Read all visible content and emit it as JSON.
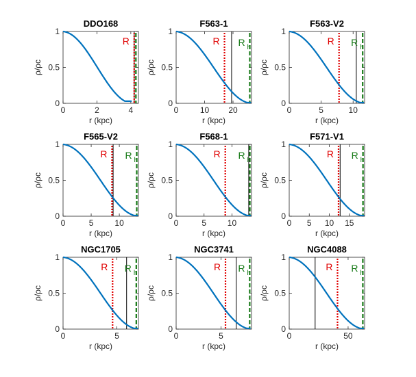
{
  "colors": {
    "profile": "#0072BD",
    "R_marker": "#E00000",
    "Rh_marker": "#177A17",
    "frame": "#262626",
    "other_line": "#000000"
  },
  "chart_data": [
    {
      "type": "line",
      "title": "DDO168",
      "xlabel": "r (kpc)",
      "ylabel": "ρ/ρc",
      "xlim": [
        0,
        4.45
      ],
      "ylim": [
        0,
        1
      ],
      "xticks": [
        0,
        2,
        4
      ],
      "xtick_labels": [
        "0",
        "2",
        "4"
      ],
      "yticks": [
        0,
        0.5,
        1
      ],
      "ytick_labels": [
        "0",
        "0.5",
        "1"
      ],
      "profile": {
        "x_end": 4.05,
        "y_end": 0.03
      },
      "R": 4.2,
      "Rh": 4.3,
      "black_line": 4.2,
      "annotations": {
        "R": "R",
        "Rh": ""
      }
    },
    {
      "type": "line",
      "title": "F563-1",
      "xlabel": "r (kpc)",
      "ylabel": "ρ/ρc",
      "xlim": [
        0,
        26.5
      ],
      "ylim": [
        0,
        1
      ],
      "xticks": [
        0,
        10,
        20
      ],
      "xtick_labels": [
        "0",
        "10",
        "20"
      ],
      "yticks": [
        0,
        0.5,
        1
      ],
      "ytick_labels": [
        "0",
        "0.5",
        "1"
      ],
      "profile": {
        "x_end": 26.3,
        "y_end": 0.01
      },
      "R": 17,
      "Rh": 25.9,
      "black_line": 19.5,
      "annotations": {
        "R": "R",
        "Rh": "R",
        "Rh_sub": "h"
      }
    },
    {
      "type": "line",
      "title": "F563-V2",
      "xlabel": "r (kpc)",
      "ylabel": "ρ/ρc",
      "xlim": [
        0,
        11.8
      ],
      "ylim": [
        0,
        1
      ],
      "xticks": [
        0,
        5,
        10
      ],
      "xtick_labels": [
        "0",
        "5",
        "10"
      ],
      "yticks": [
        0,
        0.5,
        1
      ],
      "ytick_labels": [
        "0",
        "0.5",
        "1"
      ],
      "profile": {
        "x_end": 11.7,
        "y_end": 0.01
      },
      "R": 7.8,
      "Rh": 11.5,
      "black_line": 10.5,
      "annotations": {
        "R": "R",
        "Rh": "R",
        "Rh_sub": "h"
      }
    },
    {
      "type": "line",
      "title": "F565-V2",
      "xlabel": "r (kpc)",
      "ylabel": "ρ/ρc",
      "xlim": [
        0,
        13.4
      ],
      "ylim": [
        0,
        1
      ],
      "xticks": [
        0,
        5,
        10
      ],
      "xtick_labels": [
        "0",
        "5",
        "10"
      ],
      "yticks": [
        0,
        0.5,
        1
      ],
      "ytick_labels": [
        "0",
        "0.5",
        "1"
      ],
      "profile": {
        "x_end": 13.3,
        "y_end": 0.01
      },
      "R": 8.7,
      "Rh": 13.1,
      "black_line": 8.9,
      "annotations": {
        "R": "R",
        "Rh": "R",
        "Rh_sub": "h"
      }
    },
    {
      "type": "line",
      "title": "F568-1",
      "xlabel": "r (kpc)",
      "ylabel": "ρ/ρc",
      "xlim": [
        0,
        13.5
      ],
      "ylim": [
        0,
        1
      ],
      "xticks": [
        0,
        5,
        10
      ],
      "xtick_labels": [
        "0",
        "5",
        "10"
      ],
      "yticks": [
        0,
        0.5,
        1
      ],
      "ytick_labels": [
        "0",
        "0.5",
        "1"
      ],
      "profile": {
        "x_end": 13.4,
        "y_end": 0.01
      },
      "R": 8.8,
      "Rh": 13.2,
      "black_line": 13.0,
      "annotations": {
        "R": "R",
        "Rh": "R",
        "Rh_sub": "h"
      }
    },
    {
      "type": "line",
      "title": "F571-V1",
      "xlabel": "r (kpc)",
      "ylabel": "ρ/ρc",
      "xlim": [
        0,
        18.8
      ],
      "ylim": [
        0,
        1
      ],
      "xticks": [
        0,
        5,
        10,
        15
      ],
      "xtick_labels": [
        "0",
        "5",
        "10",
        "15"
      ],
      "yticks": [
        0,
        0.5,
        1
      ],
      "ytick_labels": [
        "0",
        "0.5",
        "1"
      ],
      "profile": {
        "x_end": 18.7,
        "y_end": 0.01
      },
      "R": 12.3,
      "Rh": 18.4,
      "black_line": 12.7,
      "annotations": {
        "R": "R",
        "Rh": "R",
        "Rh_sub": "h"
      }
    },
    {
      "type": "line",
      "title": "NGC1705",
      "xlabel": "r (kpc)",
      "ylabel": "ρ/ρc",
      "xlim": [
        0,
        7.0
      ],
      "ylim": [
        0,
        1
      ],
      "xticks": [
        0,
        5
      ],
      "xtick_labels": [
        "0",
        "5"
      ],
      "yticks": [
        0,
        0.5,
        1
      ],
      "ytick_labels": [
        "0",
        "0.5",
        "1"
      ],
      "profile": {
        "x_end": 6.95,
        "y_end": 0.01
      },
      "R": 4.6,
      "Rh": 6.8,
      "black_line": 5.9,
      "annotations": {
        "R": "R",
        "Rh": "R",
        "Rh_sub": "h"
      }
    },
    {
      "type": "line",
      "title": "NGC3741",
      "xlabel": "r (kpc)",
      "ylabel": "ρ/ρc",
      "xlim": [
        0,
        8.4
      ],
      "ylim": [
        0,
        1
      ],
      "xticks": [
        0,
        5
      ],
      "xtick_labels": [
        "0",
        "5"
      ],
      "yticks": [
        0,
        0.5,
        1
      ],
      "ytick_labels": [
        "0",
        "0.5",
        "1"
      ],
      "profile": {
        "x_end": 8.3,
        "y_end": 0.01
      },
      "R": 5.5,
      "Rh": 8.2,
      "black_line": 6.7,
      "annotations": {
        "R": "R",
        "Rh": "R",
        "Rh_sub": "h"
      }
    },
    {
      "type": "line",
      "title": "NGC4088",
      "xlabel": "r (kpc)",
      "ylabel": "ρ/ρc",
      "xlim": [
        0,
        64
      ],
      "ylim": [
        0,
        1
      ],
      "xticks": [
        0,
        50
      ],
      "xtick_labels": [
        "0",
        "50"
      ],
      "yticks": [
        0,
        0.5,
        1
      ],
      "ytick_labels": [
        "0",
        "0.5",
        "1"
      ],
      "profile": {
        "x_end": 63.5,
        "y_end": 0.01
      },
      "R": 41,
      "Rh": 62.5,
      "black_line": 22,
      "annotations": {
        "R": "R",
        "Rh": "R",
        "Rh_sub": "h"
      }
    }
  ]
}
